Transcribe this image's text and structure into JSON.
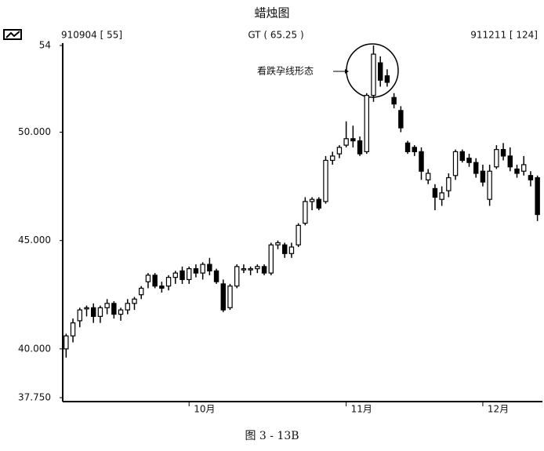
{
  "chart_data": {
    "type": "candlestick",
    "title": "蜡烛图",
    "header_left": "910904 [ 55]",
    "header_center": "GT ( 65.25 )",
    "header_right": "911211 [ 124]",
    "annotation": "看跌孕线形态",
    "caption": "图 3 - 13B",
    "up_color": "#ffffff",
    "down_color": "#000000",
    "ylim": [
      37.75,
      54
    ],
    "yticks": [
      {
        "value": 37.75,
        "label": "37.750"
      },
      {
        "value": 40,
        "label": "40.000"
      },
      {
        "value": 45,
        "label": "45.000"
      },
      {
        "value": 50,
        "label": "50.000"
      },
      54
    ],
    "xticks": [
      {
        "value": 18,
        "label": "10月"
      },
      {
        "value": 41,
        "label": "11月"
      },
      {
        "value": 61,
        "label": "12月"
      }
    ],
    "open": [
      40.0,
      40.6,
      41.3,
      41.9,
      41.9,
      41.5,
      41.9,
      42.1,
      41.6,
      41.8,
      42.1,
      42.5,
      43.1,
      43.4,
      42.9,
      42.9,
      43.3,
      43.6,
      43.2,
      43.7,
      43.5,
      43.9,
      43.6,
      43.0,
      41.9,
      42.9,
      43.7,
      43.7,
      43.7,
      43.8,
      43.5,
      44.8,
      44.8,
      44.4,
      44.8,
      45.8,
      46.8,
      46.9,
      46.8,
      48.7,
      49.0,
      49.4,
      49.7,
      49.6,
      49.1,
      51.7,
      53.2,
      52.6,
      51.6,
      51.0,
      49.5,
      49.3,
      49.1,
      47.8,
      47.4,
      46.9,
      47.3,
      48.0,
      49.1,
      48.8,
      48.6,
      48.2,
      46.9,
      48.4,
      49.2,
      48.9,
      48.3,
      48.2,
      48.0,
      47.9
    ],
    "high": [
      40.7,
      41.4,
      41.9,
      42.0,
      42.1,
      42.0,
      42.3,
      42.2,
      41.9,
      42.3,
      42.4,
      42.9,
      43.5,
      43.5,
      43.1,
      43.4,
      43.6,
      43.8,
      43.8,
      43.9,
      44.0,
      44.2,
      43.7,
      43.2,
      43.0,
      43.9,
      43.9,
      43.8,
      43.9,
      43.9,
      44.9,
      45.0,
      44.9,
      44.9,
      45.8,
      47.0,
      47.0,
      47.0,
      48.9,
      49.1,
      49.4,
      50.5,
      50.3,
      49.8,
      51.8,
      54.0,
      53.5,
      52.9,
      51.8,
      51.2,
      49.6,
      49.4,
      49.3,
      48.3,
      47.6,
      47.5,
      48.1,
      49.2,
      49.2,
      49.0,
      48.8,
      48.5,
      48.5,
      49.4,
      49.5,
      49.3,
      48.5,
      48.9,
      48.2,
      48.0
    ],
    "low": [
      39.6,
      40.3,
      41.0,
      41.5,
      41.2,
      41.2,
      41.6,
      41.4,
      41.3,
      41.6,
      41.8,
      42.3,
      42.8,
      42.8,
      42.6,
      42.7,
      43.0,
      43.0,
      43.0,
      43.3,
      43.2,
      43.4,
      43.0,
      41.7,
      41.8,
      42.8,
      43.5,
      43.4,
      43.5,
      43.4,
      43.4,
      44.6,
      44.2,
      44.2,
      44.7,
      45.7,
      46.4,
      46.4,
      46.7,
      48.5,
      48.8,
      49.3,
      49.3,
      48.9,
      49.0,
      51.4,
      52.1,
      52.1,
      51.1,
      50.0,
      49.0,
      48.9,
      47.8,
      47.6,
      46.4,
      46.6,
      47.0,
      47.8,
      48.6,
      48.4,
      47.9,
      47.5,
      46.6,
      48.3,
      48.7,
      48.2,
      47.9,
      48.0,
      47.5,
      45.9
    ],
    "close": [
      40.6,
      41.2,
      41.8,
      41.9,
      41.5,
      41.9,
      42.1,
      41.6,
      41.8,
      42.1,
      42.3,
      42.8,
      43.4,
      42.9,
      42.8,
      43.3,
      43.5,
      43.2,
      43.7,
      43.5,
      43.9,
      43.6,
      43.1,
      41.8,
      42.9,
      43.8,
      43.7,
      43.7,
      43.8,
      43.5,
      44.8,
      44.9,
      44.4,
      44.7,
      45.7,
      46.8,
      46.9,
      46.5,
      48.7,
      48.9,
      49.3,
      49.7,
      49.6,
      49.0,
      51.7,
      53.6,
      52.4,
      52.3,
      51.3,
      50.2,
      49.1,
      49.1,
      48.2,
      48.1,
      47.0,
      47.2,
      47.9,
      49.1,
      48.7,
      48.6,
      48.1,
      47.7,
      48.2,
      49.2,
      48.9,
      48.4,
      48.1,
      48.5,
      47.8,
      46.2
    ]
  }
}
